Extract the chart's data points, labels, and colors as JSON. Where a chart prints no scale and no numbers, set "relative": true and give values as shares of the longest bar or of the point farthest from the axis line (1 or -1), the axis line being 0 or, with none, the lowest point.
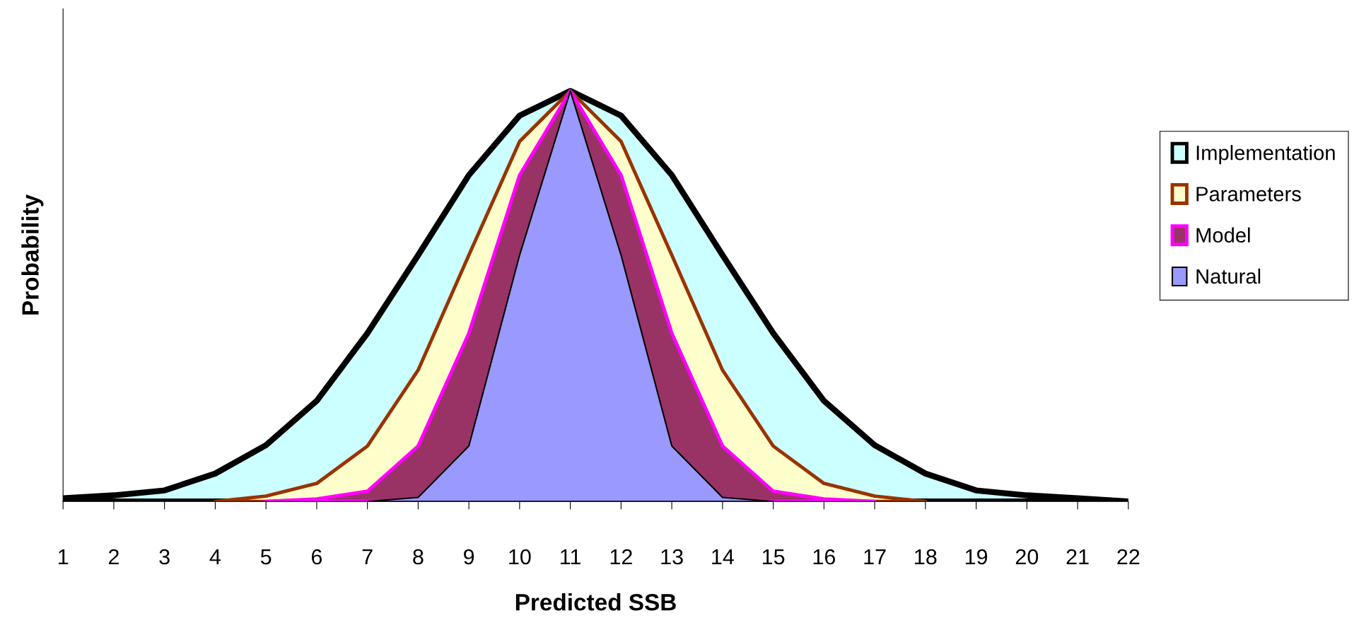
{
  "chart_data": {
    "type": "area",
    "relative": true,
    "xlabel": "Predicted SSB",
    "ylabel": "Probability",
    "legend": "right",
    "grid": false,
    "categories": [
      "1",
      "2",
      "3",
      "4",
      "5",
      "6",
      "7",
      "8",
      "9",
      "10",
      "11",
      "12",
      "13",
      "14",
      "15",
      "16",
      "17",
      "18",
      "19",
      "20",
      "21",
      "22"
    ],
    "series": [
      {
        "name": "Implementation",
        "color": "#ccffff",
        "values": [
          0.008,
          0.015,
          0.027,
          0.068,
          0.137,
          0.245,
          0.41,
          0.6,
          0.795,
          0.94,
          1,
          0.94,
          0.795,
          0.6,
          0.41,
          0.245,
          0.137,
          0.068,
          0.027,
          0.015,
          0.008,
          0
        ]
      },
      {
        "name": "Parameters",
        "color": "#ffffcc",
        "values": [
          null,
          null,
          null,
          0,
          0.013,
          0.044,
          0.135,
          0.32,
          0.6,
          0.877,
          1,
          0.877,
          0.6,
          0.32,
          0.135,
          0.044,
          0.013,
          0,
          null,
          null,
          null,
          null
        ]
      },
      {
        "name": "Model",
        "color": "#993366",
        "values": [
          null,
          null,
          null,
          null,
          0,
          0.006,
          0.025,
          0.135,
          0.41,
          0.795,
          1,
          0.795,
          0.41,
          0.135,
          0.025,
          0.006,
          0,
          null,
          null,
          null,
          null,
          null
        ]
      },
      {
        "name": "Natural",
        "color": "#9999ff",
        "values": [
          null,
          null,
          null,
          null,
          null,
          null,
          0,
          0.01,
          0.135,
          0.6,
          1,
          0.6,
          0.135,
          0.01,
          0,
          null,
          null,
          null,
          null,
          null,
          null,
          null
        ]
      }
    ]
  }
}
